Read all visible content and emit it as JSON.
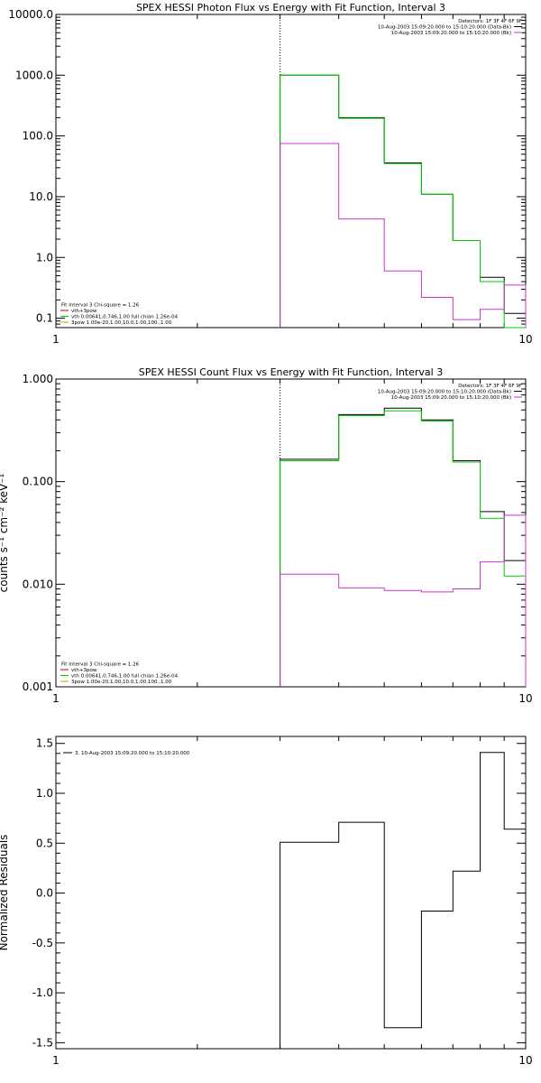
{
  "chart_data": [
    {
      "type": "line",
      "title": "SPEX HESSI Photon Flux vs Energy with Fit Function, Interval 3",
      "xscale": "log",
      "yscale": "log",
      "xlim": [
        1,
        10
      ],
      "ylim": [
        0.07,
        10000
      ],
      "x_ticks": [
        {
          "v": 1,
          "label": "1"
        },
        {
          "v": 10,
          "label": "10"
        }
      ],
      "y_ticks": [
        {
          "v": 0.1,
          "label": "0.1"
        },
        {
          "v": 1,
          "label": "1.0"
        },
        {
          "v": 10,
          "label": "10.0"
        },
        {
          "v": 100,
          "label": "100.0"
        },
        {
          "v": 1000,
          "label": "1000.0"
        },
        {
          "v": 10000,
          "label": "10000.0"
        }
      ],
      "marker_line_x": 3,
      "legend_top_right": [
        {
          "text": "Detectors: 1F 3F 4F 6F 9F",
          "color": ""
        },
        {
          "text": "10-Aug-2003 15:09:20.000 to 15:10:20.000 (Data-Bk)",
          "color": "#000000"
        },
        {
          "text": "10-Aug-2003 15:09:20.000 to 15:10:20.000 (Bk)",
          "color": "#cc33cc"
        }
      ],
      "legend_bottom_left": [
        {
          "text": "Fit Interval 3   Chi-square = 1.26",
          "color": ""
        },
        {
          "text": "vth+3pow",
          "color": "#cc0000"
        },
        {
          "text": "vth 0.00641,0.746,1.00  full chian 1.26e-04",
          "color": "#00cc00"
        },
        {
          "text": "3pow 1.00e-20,1.00,10.0,1.00,100.,1.00",
          "color": "#c8a000"
        }
      ],
      "series": [
        {
          "name": "Data-Bk",
          "color": "#000000",
          "edges": [
            3,
            4,
            5,
            6,
            7,
            8,
            9,
            10
          ],
          "values": [
            1000,
            200,
            36,
            11,
            1.9,
            0.47,
            0.12
          ]
        },
        {
          "name": "vth",
          "color": "#00cc00",
          "edges": [
            3,
            4,
            5,
            6,
            7,
            8,
            9,
            10
          ],
          "values": [
            1000,
            195,
            35,
            11,
            1.9,
            0.4,
            0.07
          ]
        },
        {
          "name": "Bk",
          "color": "#cc33cc",
          "edges": [
            3,
            4,
            5,
            6,
            7,
            8,
            9,
            10
          ],
          "values": [
            75,
            4.3,
            0.6,
            0.22,
            0.095,
            0.14,
            0.35
          ]
        }
      ]
    },
    {
      "type": "line",
      "title": "SPEX HESSI Count Flux vs Energy with Fit Function, Interval 3",
      "xscale": "log",
      "yscale": "log",
      "xlim": [
        1,
        10
      ],
      "ylim": [
        0.001,
        1
      ],
      "x_ticks": [
        {
          "v": 1,
          "label": "1"
        },
        {
          "v": 10,
          "label": "10"
        }
      ],
      "y_ticks": [
        {
          "v": 0.001,
          "label": "0.001"
        },
        {
          "v": 0.01,
          "label": "0.010"
        },
        {
          "v": 0.1,
          "label": "0.100"
        },
        {
          "v": 1,
          "label": "1.000"
        }
      ],
      "marker_line_x": 3,
      "legend_top_right": [
        {
          "text": "Detectors: 1F 3F 4F 6F 9F",
          "color": ""
        },
        {
          "text": "10-Aug-2003 15:09:20.000 to 15:10:20.000 (Data-Bk)",
          "color": "#000000"
        },
        {
          "text": "10-Aug-2003 15:09:20.000 to 15:10:20.000 (Bk)",
          "color": "#cc33cc"
        }
      ],
      "legend_bottom_left": [
        {
          "text": "Fit Interval 3   Chi-square = 1.26",
          "color": ""
        },
        {
          "text": "vth+3pow",
          "color": "#cc0000"
        },
        {
          "text": "vth 0.00641,0.746,1.00  full chian 1.26e-04",
          "color": "#00cc00"
        },
        {
          "text": "3pow 1.00e-20,1.00,10.0,1.00,100.,1.00",
          "color": "#c8a000"
        }
      ],
      "series": [
        {
          "name": "Data-Bk",
          "color": "#000000",
          "edges": [
            3,
            4,
            5,
            6,
            7,
            8,
            9,
            10
          ],
          "values": [
            0.165,
            0.45,
            0.52,
            0.4,
            0.16,
            0.051,
            0.017
          ]
        },
        {
          "name": "vth",
          "color": "#00cc00",
          "edges": [
            3,
            4,
            5,
            6,
            7,
            8,
            9,
            10
          ],
          "values": [
            0.16,
            0.44,
            0.49,
            0.39,
            0.155,
            0.044,
            0.012
          ]
        },
        {
          "name": "Bk",
          "color": "#cc33cc",
          "edges": [
            3,
            4,
            5,
            6,
            7,
            8,
            9,
            10
          ],
          "values": [
            0.0125,
            0.0092,
            0.0087,
            0.0084,
            0.009,
            0.0165,
            0.047
          ]
        }
      ],
      "ylabel": "counts s⁻¹ cm⁻² keV⁻¹"
    },
    {
      "type": "line",
      "title": "",
      "xscale": "log",
      "yscale": "linear",
      "xlim": [
        1,
        10
      ],
      "ylim": [
        -1.56,
        1.57
      ],
      "x_ticks": [
        {
          "v": 1,
          "label": "1"
        },
        {
          "v": 10,
          "label": "10"
        }
      ],
      "y_ticks": [
        {
          "v": -1.5,
          "label": "-1.5"
        },
        {
          "v": -1,
          "label": "-1.0"
        },
        {
          "v": -0.5,
          "label": "-0.5"
        },
        {
          "v": 0,
          "label": "0.0"
        },
        {
          "v": 0.5,
          "label": "0.5"
        },
        {
          "v": 1,
          "label": "1.0"
        },
        {
          "v": 1.5,
          "label": "1.5"
        }
      ],
      "ylabel": "Normalized Residuals",
      "legend_top_left": [
        {
          "text": "3. 10-Aug-2003 15:09:20.000 to 15:10:20.000",
          "color": "#000000"
        }
      ],
      "series": [
        {
          "name": "3. 10-Aug-2003 15:09:20.000 to 15:10:20.000",
          "color": "#000000",
          "edges": [
            3,
            4,
            5,
            6,
            7,
            8,
            9,
            10
          ],
          "values": [
            0.51,
            0.71,
            -1.35,
            -0.18,
            0.22,
            1.41,
            0.64
          ]
        }
      ]
    }
  ]
}
